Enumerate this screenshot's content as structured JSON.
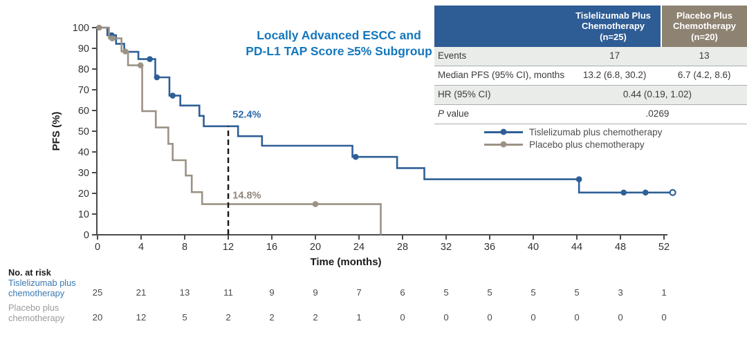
{
  "title": {
    "line1": "Locally Advanced ESCC and",
    "line2": "PD-L1 TAP Score ≥5% Subgroup"
  },
  "colors": {
    "title_blue": "#1477bd",
    "curve_blue": "#2e5f96",
    "curve_gray": "#9b9285",
    "annotation_blue": "#2a68a9",
    "annotation_gray": "#8f8779",
    "header_blue": "#2e5c94",
    "header_taupe": "#8e8372",
    "at_risk_blue": "#3a77b2",
    "at_risk_gray": "#9a9a9a",
    "axis_gray": "#4a4a4a",
    "legend_text": "#4d4d4d"
  },
  "stats_table": {
    "col1_header": "Tislelizumab Plus\nChemotherapy\n(n=25)",
    "col2_header": "Placebo Plus\nChemotherapy\n(n=20)",
    "rows": [
      {
        "label": "Events",
        "v1": "17",
        "v2": "13"
      },
      {
        "label": "Median PFS (95% CI), months",
        "v1": "13.2 (6.8, 30.2)",
        "v2": "6.7 (4.2, 8.6)"
      },
      {
        "label": "HR (95% CI)",
        "v1": "0.44 (0.19, 1.02)"
      },
      {
        "label_italic": "P",
        "label_rest": " value",
        "v1": ".0269"
      }
    ]
  },
  "legend": {
    "items": [
      {
        "label": "Tislelizumab plus chemotherapy",
        "color_key": "curve_blue"
      },
      {
        "label": "Placebo plus chemotherapy",
        "color_key": "curve_gray"
      }
    ]
  },
  "chart_data": {
    "type": "line",
    "subtype": "kaplan-meier-step",
    "title": "Locally Advanced ESCC and PD-L1 TAP Score ≥5% Subgroup",
    "xlabel": "Time (months)",
    "ylabel": "PFS (%)",
    "xlim": [
      0,
      52
    ],
    "ylim": [
      0,
      100
    ],
    "xticks": [
      0,
      4,
      8,
      12,
      16,
      20,
      24,
      28,
      32,
      36,
      40,
      44,
      48,
      52
    ],
    "yticks": [
      0,
      10,
      20,
      30,
      40,
      50,
      60,
      70,
      80,
      90,
      100
    ],
    "grid": false,
    "legend_position": "right-middle",
    "dashed_line": {
      "t": 12,
      "p_top": 52.4
    },
    "annotations": [
      {
        "text": "52.4%",
        "t": 12.4,
        "p": 56.5,
        "color": "#2a68a9"
      },
      {
        "text": "14.8%",
        "t": 12.4,
        "p": 17.5,
        "color": "#8f8779"
      }
    ],
    "series": [
      {
        "name": "Tislelizumab plus chemotherapy",
        "color": "#2e5f96",
        "start": [
          0,
          100
        ],
        "steps": [
          [
            0.9,
            96.3
          ],
          [
            1.7,
            92.2
          ],
          [
            2.45,
            88.3
          ],
          [
            3.75,
            84.8
          ],
          [
            5.3,
            76.0
          ],
          [
            6.6,
            67.2
          ],
          [
            7.6,
            62.4
          ],
          [
            9.35,
            57.4
          ],
          [
            9.75,
            52.4
          ],
          [
            12.9,
            47.6
          ],
          [
            15.1,
            43.0
          ],
          [
            23.4,
            37.6
          ],
          [
            27.5,
            32.2
          ],
          [
            30.0,
            26.8
          ],
          [
            44.2,
            20.4
          ]
        ],
        "end_t": 52.8,
        "end_open_dot": true,
        "censors": [
          [
            1.3,
            96.3
          ],
          [
            4.8,
            84.8
          ],
          [
            5.45,
            76.0
          ],
          [
            6.9,
            67.2
          ],
          [
            23.7,
            37.6
          ],
          [
            44.2,
            26.8
          ],
          [
            48.3,
            20.4
          ],
          [
            50.3,
            20.4
          ]
        ]
      },
      {
        "name": "Placebo plus chemotherapy",
        "color": "#9b9285",
        "start": [
          0,
          100
        ],
        "steps": [
          [
            1.05,
            94.8
          ],
          [
            2.2,
            88.5
          ],
          [
            2.8,
            81.8
          ],
          [
            4.1,
            59.7
          ],
          [
            5.35,
            51.8
          ],
          [
            6.5,
            43.9
          ],
          [
            6.9,
            36.0
          ],
          [
            8.1,
            28.6
          ],
          [
            8.65,
            20.6
          ],
          [
            9.6,
            14.8
          ],
          [
            26.0,
            0
          ]
        ],
        "end_t": 26.0,
        "end_open_dot": false,
        "censors": [
          [
            0.15,
            100
          ],
          [
            1.35,
            94.8
          ],
          [
            2.55,
            88.5
          ],
          [
            3.95,
            81.8
          ],
          [
            20.0,
            14.8
          ]
        ]
      }
    ],
    "at_risk": {
      "header": "No. at risk",
      "groups": [
        {
          "label_lines": "Tislelizumab plus\nchemotherapy",
          "color": "#3a77b2",
          "counts": [
            25,
            21,
            13,
            11,
            9,
            9,
            7,
            6,
            5,
            5,
            5,
            5,
            3,
            1
          ]
        },
        {
          "label_lines": "Placebo plus\nchemotherapy",
          "color": "#9a9a9a",
          "counts": [
            20,
            12,
            5,
            2,
            2,
            2,
            1,
            0,
            0,
            0,
            0,
            0,
            0,
            0
          ]
        }
      ]
    }
  }
}
